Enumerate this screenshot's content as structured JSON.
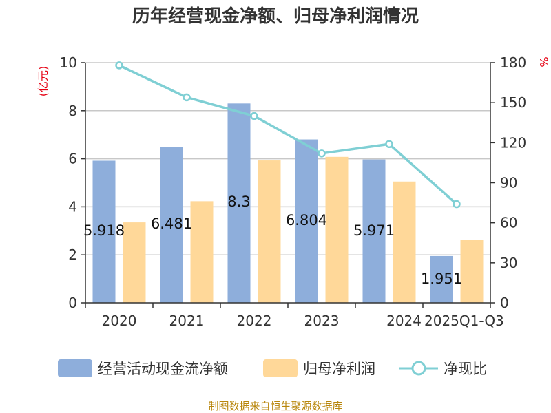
{
  "chart_data": {
    "type": "bar",
    "title": "历年经营现金净额、归母净利润情况",
    "categories": [
      "2020",
      "2021",
      "2022",
      "2023",
      "2024",
      "2025Q1-Q3"
    ],
    "series": [
      {
        "name": "经营活动现金流净额",
        "kind": "bar",
        "axis": "left",
        "color": "#8eaedb",
        "values": [
          5.918,
          6.481,
          8.3,
          6.804,
          5.971,
          1.951
        ],
        "labels": [
          "5.918",
          "6.481",
          "8.3",
          "6.804",
          "5.971",
          "1.951"
        ]
      },
      {
        "name": "归母净利润",
        "kind": "bar",
        "axis": "left",
        "color": "#ffd899",
        "values": [
          3.35,
          4.23,
          5.93,
          6.08,
          5.05,
          2.63
        ]
      },
      {
        "name": "净现比",
        "kind": "line",
        "axis": "right",
        "color": "#7fcfd4",
        "values": [
          178,
          154,
          140,
          112,
          119,
          74
        ]
      }
    ],
    "left_axis": {
      "unit": "(亿元)",
      "min": 0,
      "max": 10,
      "ticks": [
        "0",
        "2",
        "4",
        "6",
        "8",
        "10"
      ]
    },
    "right_axis": {
      "unit": "%",
      "min": 0,
      "max": 180,
      "ticks": [
        "0",
        "30",
        "60",
        "90",
        "120",
        "150",
        "180"
      ]
    },
    "grid": true,
    "legend_position": "bottom"
  },
  "source": "制图数据来自恒生聚源数据库"
}
